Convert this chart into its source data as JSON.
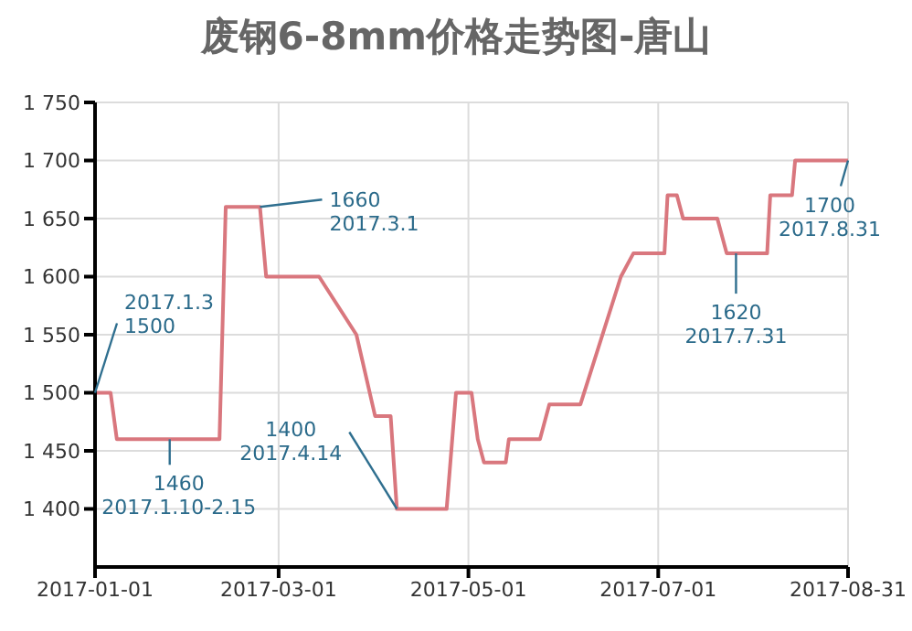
{
  "chart_data": {
    "type": "line",
    "title": "废钢6-8mm价格走势图-唐山",
    "x": [
      "2017-01-01",
      "2017-01-06",
      "2017-01-08",
      "2017-02-10",
      "2017-02-12",
      "2017-02-23",
      "2017-02-25",
      "2017-03-14",
      "2017-03-26",
      "2017-04-01",
      "2017-04-06",
      "2017-04-08",
      "2017-04-24",
      "2017-04-27",
      "2017-05-02",
      "2017-05-04",
      "2017-05-06",
      "2017-05-13",
      "2017-05-14",
      "2017-05-24",
      "2017-05-27",
      "2017-06-06",
      "2017-06-19",
      "2017-06-23",
      "2017-07-03",
      "2017-07-04",
      "2017-07-07",
      "2017-07-09",
      "2017-07-20",
      "2017-07-23",
      "2017-08-05",
      "2017-08-06",
      "2017-08-13",
      "2017-08-14",
      "2017-08-31"
    ],
    "series": [
      {
        "color": "#d9777e",
        "values": [
          1500,
          1500,
          1460,
          1460,
          1660,
          1660,
          1600,
          1600,
          1550,
          1480,
          1480,
          1400,
          1400,
          1500,
          1500,
          1460,
          1440,
          1440,
          1460,
          1460,
          1490,
          1490,
          1600,
          1620,
          1620,
          1670,
          1670,
          1650,
          1650,
          1620,
          1620,
          1670,
          1670,
          1700,
          1700
        ]
      }
    ],
    "xlim": [
      "2017-01-01",
      "2017-08-31"
    ],
    "xticks": [
      "2017-01-01",
      "2017-03-01",
      "2017-05-01",
      "2017-07-01",
      "2017-08-31"
    ],
    "ylim": [
      1350,
      1750
    ],
    "yticks": [
      {
        "value": 1400,
        "label": "1 400"
      },
      {
        "value": 1450,
        "label": "1 450"
      },
      {
        "value": 1500,
        "label": "1 500"
      },
      {
        "value": 1550,
        "label": "1 550"
      },
      {
        "value": 1600,
        "label": "1 600"
      },
      {
        "value": 1650,
        "label": "1 650"
      },
      {
        "value": 1700,
        "label": "1 700"
      },
      {
        "value": 1750,
        "label": "1 750"
      }
    ],
    "grid": true,
    "marker": "none",
    "line_style": "solid",
    "annotations": [
      {
        "text": "2017.1.3\n1500",
        "x": "2017-01-01",
        "y": 1500
      },
      {
        "text": "1460\n2017.1.10-2.15",
        "x": "2017-01-25",
        "y": 1460
      },
      {
        "text": "1660\n2017.3.1",
        "x": "2017-02-23",
        "y": 1660
      },
      {
        "text": "1400\n2017.4.14",
        "x": "2017-04-08",
        "y": 1400
      },
      {
        "text": "1620\n2017.7.31",
        "x": "2017-07-26",
        "y": 1620
      },
      {
        "text": "1700\n2017.8.31",
        "x": "2017-08-31",
        "y": 1700
      }
    ]
  }
}
